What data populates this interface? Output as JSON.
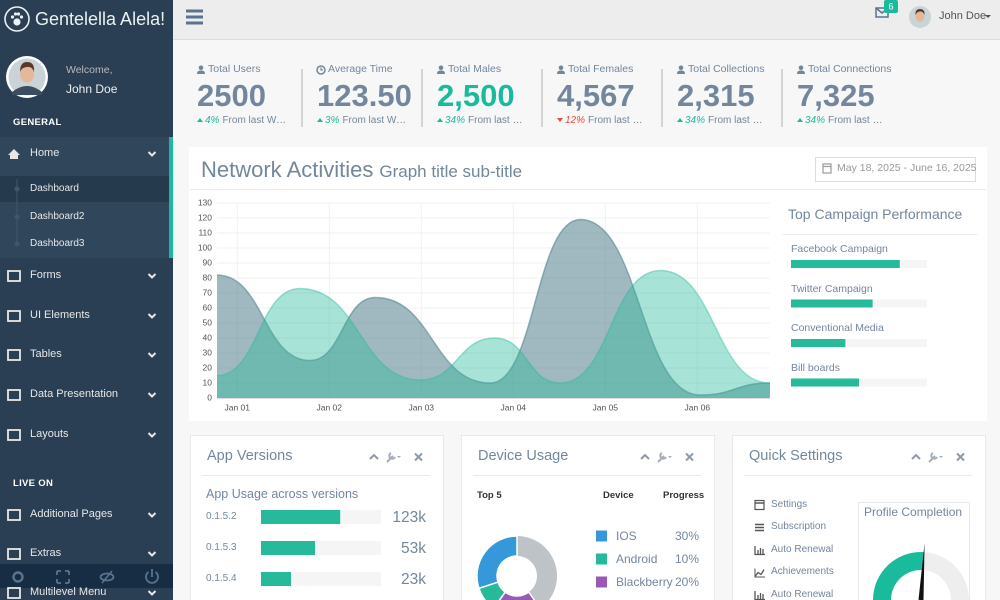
{
  "sidebar": {
    "brand": "Gentelella Alela!",
    "welcome": "Welcome,",
    "user": "John Doe",
    "sections": [
      {
        "title": "GENERAL",
        "items": [
          {
            "label": "Home",
            "children": [
              "Dashboard",
              "Dashboard2",
              "Dashboard3"
            ]
          },
          {
            "label": "Forms"
          },
          {
            "label": "UI Elements"
          },
          {
            "label": "Tables"
          },
          {
            "label": "Data Presentation"
          },
          {
            "label": "Layouts"
          }
        ]
      },
      {
        "title": "LIVE ON",
        "items": [
          {
            "label": "Additional Pages"
          },
          {
            "label": "Extras"
          },
          {
            "label": "Multilevel Menu"
          }
        ]
      }
    ]
  },
  "topbar": {
    "notifications": "6",
    "user": "John Doe"
  },
  "stats": [
    {
      "icon": "user",
      "label": "Total Users",
      "value": "2500",
      "trend": "up",
      "change": "4%",
      "note": "From last Week"
    },
    {
      "icon": "clock",
      "label": "Average Time",
      "value": "123.50",
      "trend": "up",
      "change": "3%",
      "note": "From last Week"
    },
    {
      "icon": "user",
      "label": "Total Males",
      "value": "2,500",
      "value_color": "#1ABB9C",
      "trend": "up",
      "change": "34%",
      "note": "From last Week"
    },
    {
      "icon": "user",
      "label": "Total Females",
      "value": "4,567",
      "trend": "down",
      "change": "12%",
      "note": "From last Week"
    },
    {
      "icon": "user",
      "label": "Total Collections",
      "value": "2,315",
      "trend": "up",
      "change": "34%",
      "note": "From last Week"
    },
    {
      "icon": "user",
      "label": "Total Connections",
      "value": "7,325",
      "trend": "up",
      "change": "34%",
      "note": "From last Week"
    }
  ],
  "network": {
    "title": "Network Activities",
    "subtitle": "Graph title sub-title",
    "date_range": "May 18, 2025 - June 16, 2025",
    "chart_data": {
      "type": "area",
      "xlim": [
        0.78,
        6.79
      ],
      "ylim": [
        0,
        130
      ],
      "yticks": [
        0,
        10,
        20,
        30,
        40,
        50,
        60,
        70,
        80,
        90,
        100,
        110,
        120,
        130
      ],
      "xticks": [
        {
          "value": 1,
          "label": "Jan 01"
        },
        {
          "value": 2,
          "label": "Jan 02"
        },
        {
          "value": 3,
          "label": "Jan 03"
        },
        {
          "value": 4,
          "label": "Jan 04"
        },
        {
          "value": 5,
          "label": "Jan 05"
        },
        {
          "value": 6,
          "label": "Jan 06"
        }
      ],
      "grid": true,
      "series": [
        {
          "color": "rgba(82,128,140,0.55)",
          "x": [
            0.78,
            1.79,
            2.5,
            3.75,
            4.73,
            6.03,
            6.79
          ],
          "values": [
            82,
            25,
            67,
            10,
            119,
            2,
            10
          ]
        },
        {
          "color": "rgba(38,185,154,0.4)",
          "x": [
            0.78,
            1.68,
            2.99,
            3.8,
            4.51,
            5.6,
            6.79
          ],
          "values": [
            15,
            73,
            12,
            40,
            10,
            85,
            10
          ]
        }
      ]
    }
  },
  "campaigns": {
    "title": "Top Campaign Performance",
    "color": "#26B99A",
    "items": [
      {
        "label": "Facebook Campaign",
        "progress": 80
      },
      {
        "label": "Twitter Campaign",
        "progress": 60
      },
      {
        "label": "Conventional Media",
        "progress": 40
      },
      {
        "label": "Bill boards",
        "progress": 50
      }
    ]
  },
  "app_versions": {
    "title": "App Versions",
    "subtitle": "App Usage across versions",
    "color": "#26B99A",
    "rows": [
      {
        "version": "0.1.5.2",
        "progress": 66,
        "count": "123k"
      },
      {
        "version": "0.1.5.3",
        "progress": 45,
        "count": "53k"
      },
      {
        "version": "0.1.5.4",
        "progress": 25,
        "count": "23k"
      }
    ]
  },
  "device_usage": {
    "title": "Device Usage",
    "headers": [
      "Top 5",
      "Device",
      "Progress"
    ],
    "devices": [
      {
        "name": "IOS",
        "value": 30,
        "value_label": "30%",
        "color": "#3498DB"
      },
      {
        "name": "Android",
        "value": 10,
        "value_label": "10%",
        "color": "#26B99A"
      },
      {
        "name": "Blackberry",
        "value": 20,
        "value_label": "20%",
        "color": "#9B59B6"
      }
    ]
  },
  "quick_settings": {
    "title": "Quick Settings",
    "items": [
      "Settings",
      "Subscription",
      "Auto Renewal",
      "Achievements",
      "Auto Renewal"
    ],
    "profile_completion": {
      "title": "Profile Completion",
      "value": 52,
      "color": "#1ABB9C"
    }
  }
}
